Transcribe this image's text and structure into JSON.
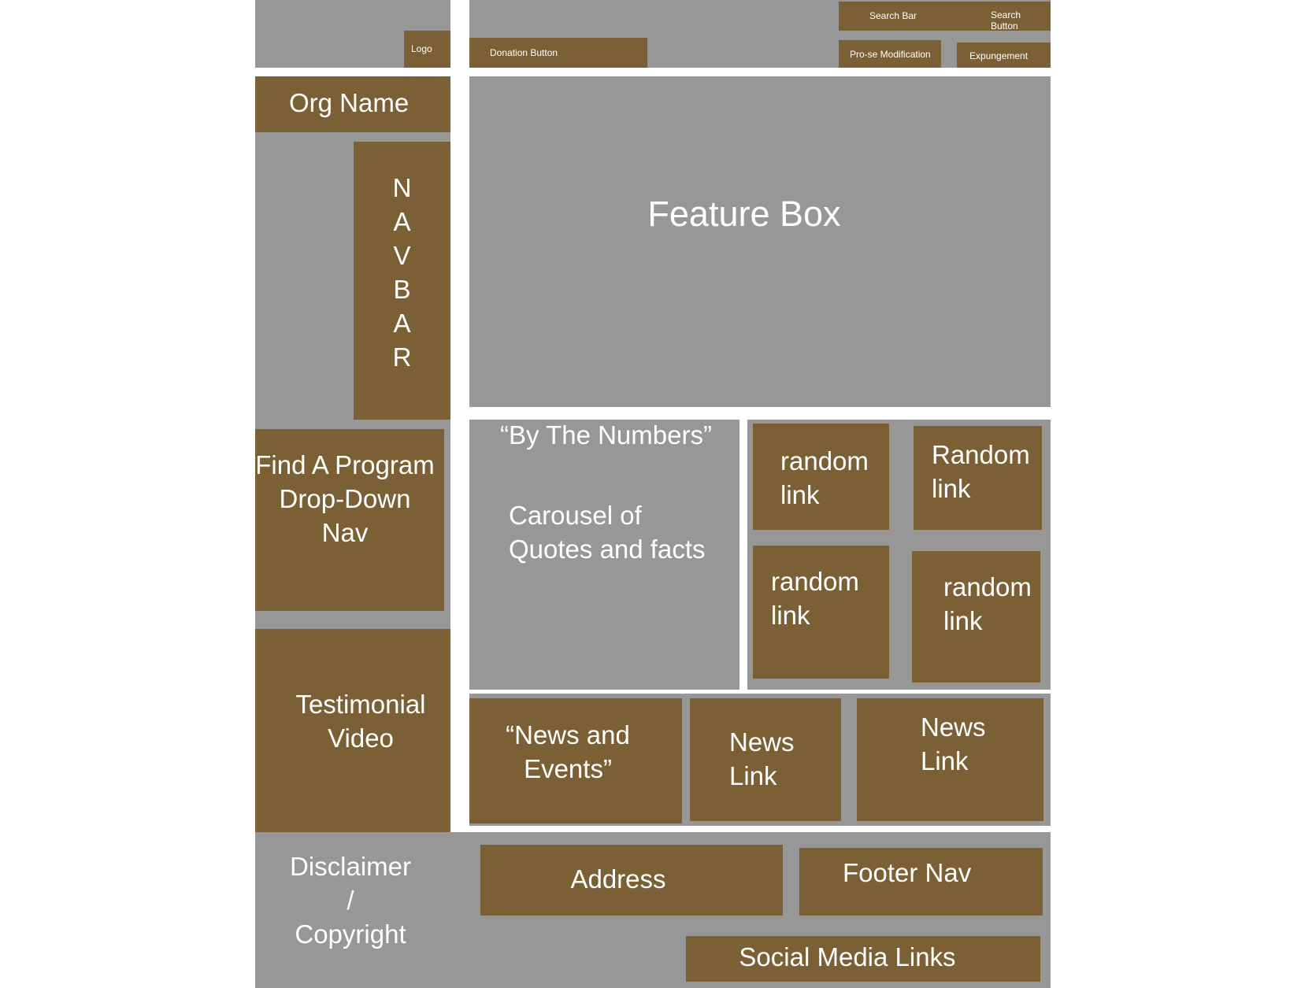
{
  "header": {
    "logo": "Logo",
    "donation_button": "Donation Button",
    "search_bar": "Search Bar",
    "search_button": "Search Button",
    "prose_modification": "Pro-se Modification",
    "expungement": "Expungement"
  },
  "org_name": "Org Name",
  "navbar": "N\nA\nV\nB\nA\nR",
  "feature_box": "Feature Box",
  "find_program": "Find A Program\nDrop-Down\nNav",
  "by_the_numbers": {
    "title": "“By The Numbers”",
    "body": "Carousel of\nQuotes and facts"
  },
  "random_links": [
    "random\nlink",
    "Random\nlink",
    "random\nlink",
    "random\nlink"
  ],
  "testimonial": "Testimonial\nVideo",
  "news": {
    "title": "“News and\nEvents”",
    "links": [
      "News\nLink",
      "News\nLink"
    ]
  },
  "footer": {
    "disclaimer": "Disclaimer\n/\nCopyright",
    "address": "Address",
    "footer_nav": "Footer Nav",
    "social": "Social Media Links"
  },
  "colors": {
    "brown": "#7b5f35",
    "gray": "#979797",
    "text": "#ffffff"
  }
}
